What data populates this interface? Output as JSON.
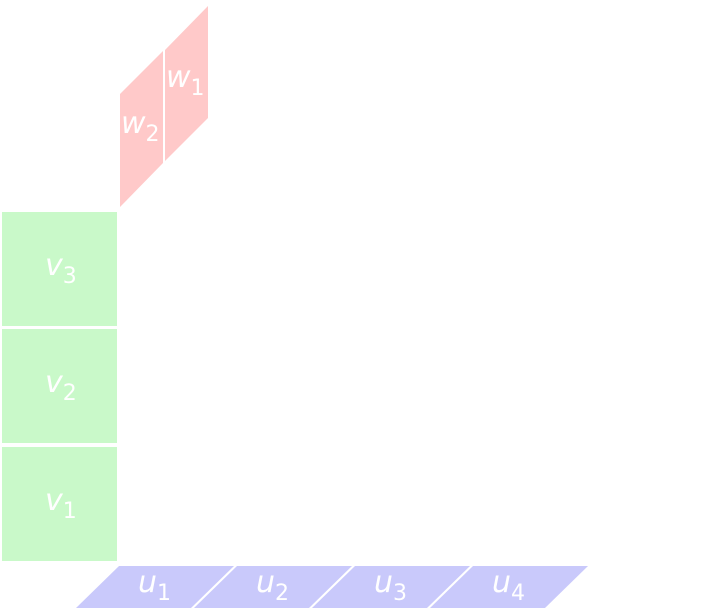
{
  "colors": {
    "w_fill": "#ffc9c9",
    "v_fill": "#c9f9c9",
    "u_fill": "#c9c9fb",
    "text": "#ffffff",
    "background": "#ffffff"
  },
  "w_blocks": [
    {
      "var": "w",
      "sub": "1"
    },
    {
      "var": "w",
      "sub": "2"
    }
  ],
  "v_blocks": [
    {
      "var": "v",
      "sub": "3"
    },
    {
      "var": "v",
      "sub": "2"
    },
    {
      "var": "v",
      "sub": "1"
    }
  ],
  "u_blocks": [
    {
      "var": "u",
      "sub": "1"
    },
    {
      "var": "u",
      "sub": "2"
    },
    {
      "var": "u",
      "sub": "3"
    },
    {
      "var": "u",
      "sub": "4"
    }
  ]
}
